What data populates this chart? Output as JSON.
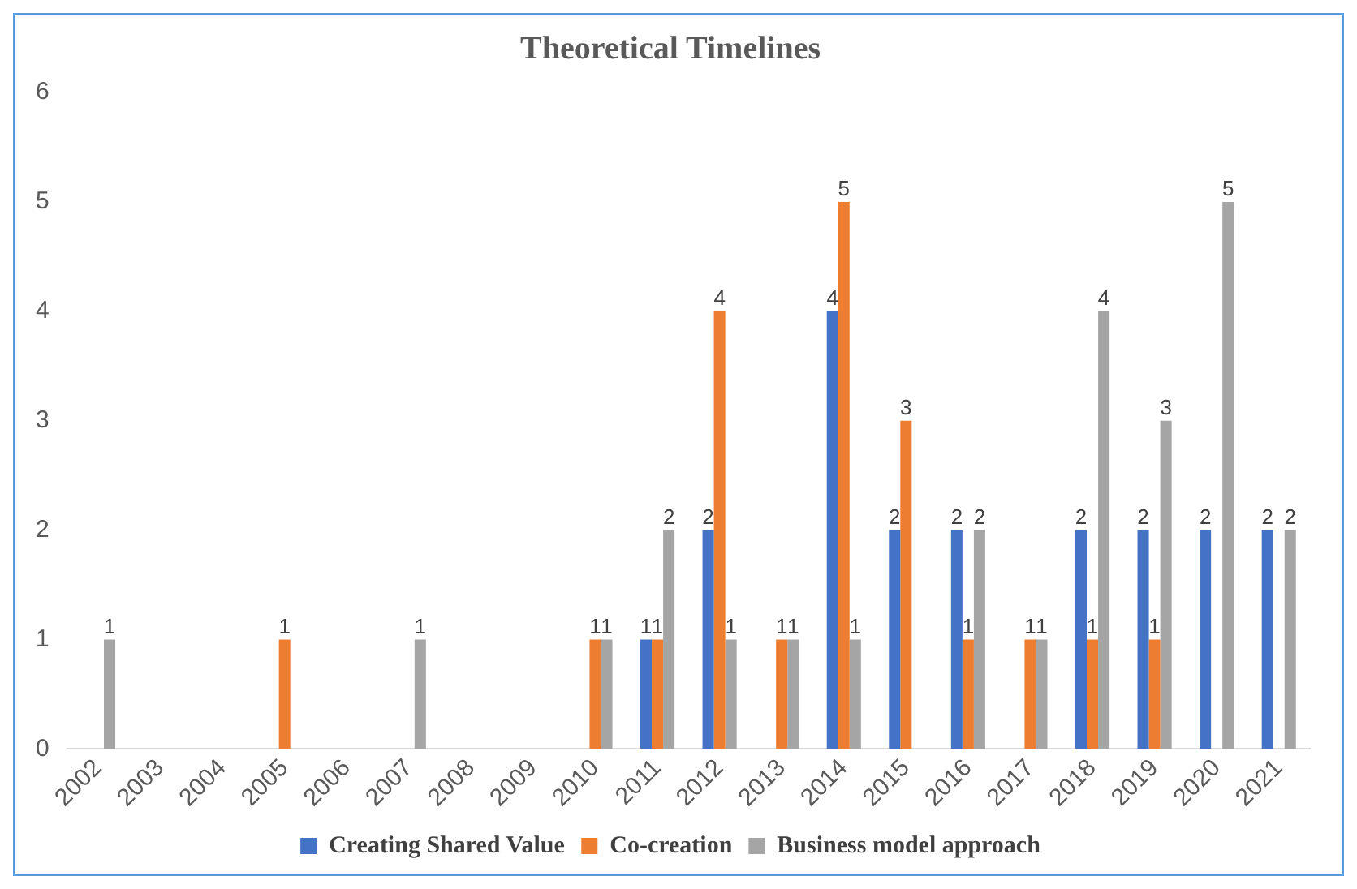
{
  "chart_data": {
    "type": "bar",
    "title": "Theoretical Timelines",
    "categories": [
      "2002",
      "2003",
      "2004",
      "2005",
      "2006",
      "2007",
      "2008",
      "2009",
      "2010",
      "2011",
      "2012",
      "2013",
      "2014",
      "2015",
      "2016",
      "2017",
      "2018",
      "2019",
      "2020",
      "2021"
    ],
    "series": [
      {
        "name": "Creating Shared Value",
        "color": "#4472c4",
        "values": [
          null,
          null,
          null,
          null,
          null,
          null,
          null,
          null,
          null,
          1,
          2,
          null,
          4,
          2,
          2,
          null,
          2,
          2,
          2,
          2
        ]
      },
      {
        "name": "Co-creation",
        "color": "#ed7d31",
        "values": [
          null,
          null,
          null,
          1,
          null,
          null,
          null,
          null,
          1,
          1,
          4,
          1,
          5,
          3,
          1,
          1,
          1,
          1,
          null,
          null
        ]
      },
      {
        "name": "Business model approach",
        "color": "#a5a5a5",
        "values": [
          1,
          null,
          null,
          null,
          null,
          1,
          null,
          null,
          1,
          2,
          1,
          1,
          1,
          null,
          2,
          1,
          4,
          3,
          5,
          2
        ]
      }
    ],
    "ylim": [
      0,
      6
    ],
    "yticks": [
      0,
      1,
      2,
      3,
      4,
      5,
      6
    ],
    "grid": false,
    "legend": "bottom",
    "data_labels": true
  }
}
